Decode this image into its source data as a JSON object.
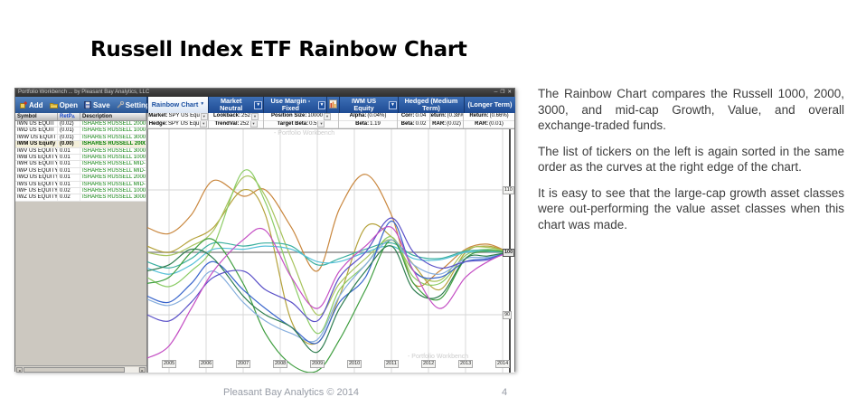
{
  "slide": {
    "title": "Russell Index ETF Rainbow Chart",
    "body_paragraphs": [
      "The Rainbow Chart compares the Russell 1000, 2000, 3000, and mid-cap Growth, Value, and overall exchange-traded funds.",
      "The list of tickers on the left is again sorted in the same order as the curves at the right edge of the chart.",
      "It is easy to see that the large-cap growth asset classes were out-performing the value asset classes when this chart was made."
    ],
    "footer": {
      "credit": "Pleasant Bay Analytics © 2014",
      "page_number": "4"
    }
  },
  "app": {
    "window_title": "Portfolio Workbench ... by Pleasant Bay Analytics, LLC",
    "window_controls": [
      {
        "glyph": "─",
        "icon": "minimize-icon"
      },
      {
        "glyph": "❒",
        "icon": "maximize-icon"
      },
      {
        "glyph": "✕",
        "icon": "close-icon"
      }
    ],
    "toolbar": [
      {
        "label": "Add",
        "icon": "add-icon"
      },
      {
        "label": "Open",
        "icon": "open-folder-icon"
      },
      {
        "label": "Save",
        "icon": "save-disk-icon"
      },
      {
        "label": "Settings",
        "icon": "settings-wrench-icon"
      }
    ],
    "tabs": [
      {
        "label": "Rainbow Chart",
        "active": true,
        "dropdown": true
      },
      {
        "label": "Market Neutral",
        "dropdown": true
      },
      {
        "label": "Use Margin - Fixed",
        "dropdown": true
      },
      {
        "icon": "mini-chart-icon"
      },
      {
        "label": "IWM US Equity",
        "dropdown": true
      },
      {
        "label": "Hedged (Medium Term)"
      },
      {
        "label": "(Longer Term)"
      }
    ],
    "param_groups": [
      {
        "top": "Market: SPY US Equ",
        "bottom": "Hedge: SPY US Equ",
        "dropdown": true
      },
      {
        "top": "Lookback: 252",
        "bottom": "TrendVal: 252",
        "dropdown": true
      },
      {
        "top": "Position Size: 10000",
        "bottom": "Target Beta: 0.5",
        "dropdown": true
      },
      {
        "top": "Alpha: (0.04%)",
        "bottom": "Beta: 1.19"
      },
      {
        "top": "Corr: 0.04",
        "bottom": "Beta: 0.02"
      },
      {
        "top": "Return: (0.38%)",
        "bottom": "RAR: (0.02)"
      },
      {
        "top": "Return: (0.66%)",
        "bottom": "RAR: (0.01)"
      }
    ],
    "table": {
      "headers": [
        "Symbol",
        "RetP",
        "Description"
      ],
      "sort_indicator": "▵",
      "rows": [
        {
          "symbol": "IWN US EQUIT",
          "ret": "(0.02)",
          "desc": "ISHARES RUSSELL 2000 VALUE E",
          "selected": false
        },
        {
          "symbol": "IWD US EQUIT",
          "ret": "(0.01)",
          "desc": "ISHARES RUSSELL 1000 VALUE E",
          "selected": false
        },
        {
          "symbol": "IWW US EQUIT",
          "ret": "(0.01)",
          "desc": "ISHARES RUSSELL 3000 VALUE E",
          "selected": false
        },
        {
          "symbol": "IWM US Equity",
          "ret": "(0.00)",
          "desc": "ISHARES RUSSELL 2000 ETF",
          "selected": true
        },
        {
          "symbol": "IWV US EQUITY",
          "ret": "0.01",
          "desc": "ISHARES RUSSELL 3000 ETF",
          "selected": false
        },
        {
          "symbol": "IWB US EQUITY",
          "ret": "0.01",
          "desc": "ISHARES RUSSELL 1000 ETF",
          "selected": false
        },
        {
          "symbol": "IWR US EQUITY",
          "ret": "0.01",
          "desc": "ISHARES RUSSELL MID-CAP ETF",
          "selected": false
        },
        {
          "symbol": "IWP US EQUITY",
          "ret": "0.01",
          "desc": "ISHARES RUSSELL MID-CAP GRO",
          "selected": false
        },
        {
          "symbol": "IWO US EQUITY",
          "ret": "0.01",
          "desc": "ISHARES RUSSELL 2000 GROWTH",
          "selected": false
        },
        {
          "symbol": "IWS US EQUITY",
          "ret": "0.01",
          "desc": "ISHARES RUSSELL MID-CAP VAL",
          "selected": false
        },
        {
          "symbol": "IWF US EQUITY",
          "ret": "0.02",
          "desc": "ISHARES RUSSELL 1000 GROWTH",
          "selected": false
        },
        {
          "symbol": "IWZ US EQUITY",
          "ret": "0.02",
          "desc": "ISHARES RUSSELL 3000 GROWTH",
          "selected": false
        }
      ]
    }
  },
  "chart_data": {
    "type": "line",
    "x_ticks": [
      2005,
      2006,
      2007,
      2008,
      2009,
      2010,
      2011,
      2012,
      2013,
      2014
    ],
    "y_ticks": [
      110,
      100,
      90
    ],
    "baseline": 100,
    "xlim": [
      2004.4,
      2014.3
    ],
    "ylim": [
      80,
      119
    ],
    "grid": true,
    "watermark": "- Portfolio Workbench",
    "series": [
      {
        "ticker": "IWN",
        "name": "iShares Russell 2000 Value",
        "color": "#c9873e",
        "points": [
          [
            2004.4,
            104
          ],
          [
            2005,
            103
          ],
          [
            2005.6,
            106
          ],
          [
            2006.2,
            111.5
          ],
          [
            2007,
            109
          ],
          [
            2007.6,
            110
          ],
          [
            2008.3,
            104
          ],
          [
            2009,
            97
          ],
          [
            2009.6,
            107
          ],
          [
            2010.3,
            112.5
          ],
          [
            2011,
            106
          ],
          [
            2011.6,
            95
          ],
          [
            2012.3,
            97
          ],
          [
            2013,
            100.5
          ],
          [
            2013.6,
            101.3
          ],
          [
            2014.15,
            100
          ]
        ]
      },
      {
        "ticker": "IWD",
        "name": "iShares Russell 1000 Value",
        "color": "#b5a23b",
        "points": [
          [
            2004.4,
            101
          ],
          [
            2005,
            100
          ],
          [
            2005.6,
            102
          ],
          [
            2006.2,
            104
          ],
          [
            2007,
            110
          ],
          [
            2007.6,
            106
          ],
          [
            2008.3,
            89
          ],
          [
            2009,
            85.5
          ],
          [
            2009.6,
            93
          ],
          [
            2010.3,
            104
          ],
          [
            2011,
            102.5
          ],
          [
            2011.6,
            98
          ],
          [
            2012.3,
            94
          ],
          [
            2013,
            100
          ],
          [
            2013.6,
            101
          ],
          [
            2014.15,
            100
          ]
        ]
      },
      {
        "ticker": "IWW",
        "name": "iShares Russell 3000 Value",
        "color": "#a8c45e",
        "points": [
          [
            2004.4,
            100
          ],
          [
            2005,
            99.5
          ],
          [
            2005.6,
            101
          ],
          [
            2006.2,
            103.5
          ],
          [
            2007,
            112
          ],
          [
            2007.6,
            109
          ],
          [
            2008.3,
            99
          ],
          [
            2009,
            90
          ],
          [
            2009.6,
            95
          ],
          [
            2010.3,
            99
          ],
          [
            2011,
            102
          ],
          [
            2011.6,
            97
          ],
          [
            2012.3,
            95.5
          ],
          [
            2013,
            100.3
          ],
          [
            2013.6,
            100.8
          ],
          [
            2014.15,
            100
          ]
        ]
      },
      {
        "ticker": "IWM",
        "name": "iShares Russell 2000 ETF",
        "color": "#8ccc66",
        "points": [
          [
            2004.4,
            96
          ],
          [
            2005,
            94.5
          ],
          [
            2005.6,
            97
          ],
          [
            2006.2,
            101
          ],
          [
            2007,
            113
          ],
          [
            2007.6,
            108
          ],
          [
            2008.3,
            96
          ],
          [
            2009,
            87
          ],
          [
            2009.6,
            94
          ],
          [
            2010.3,
            98
          ],
          [
            2011,
            102.5
          ],
          [
            2011.6,
            96
          ],
          [
            2012.3,
            95
          ],
          [
            2013,
            99.5
          ],
          [
            2013.6,
            100.5
          ],
          [
            2014.15,
            100
          ]
        ]
      },
      {
        "ticker": "IWV",
        "name": "iShares Russell 3000 ETF",
        "color": "#3aaf9f",
        "points": [
          [
            2004.4,
            98.5
          ],
          [
            2005,
            97.5
          ],
          [
            2005.6,
            99
          ],
          [
            2006.2,
            101.5
          ],
          [
            2007,
            101
          ],
          [
            2007.6,
            101.5
          ],
          [
            2008.3,
            101
          ],
          [
            2009,
            98
          ],
          [
            2009.6,
            99
          ],
          [
            2010.3,
            100.5
          ],
          [
            2011,
            101.5
          ],
          [
            2011.6,
            99.5
          ],
          [
            2012.3,
            99
          ],
          [
            2013,
            100.2
          ],
          [
            2013.6,
            100.3
          ],
          [
            2014.15,
            100
          ]
        ]
      },
      {
        "ticker": "IWB",
        "name": "iShares Russell 1000 ETF",
        "color": "#55c0d8",
        "points": [
          [
            2004.4,
            97.5
          ],
          [
            2005,
            96.5
          ],
          [
            2005.6,
            98
          ],
          [
            2006.2,
            100.5
          ],
          [
            2007,
            100.5
          ],
          [
            2007.6,
            101
          ],
          [
            2008.3,
            100.5
          ],
          [
            2009,
            98.5
          ],
          [
            2009.6,
            98.5
          ],
          [
            2010.3,
            100
          ],
          [
            2011,
            101
          ],
          [
            2011.6,
            99
          ],
          [
            2012.3,
            98.8
          ],
          [
            2013,
            100
          ],
          [
            2013.6,
            100.1
          ],
          [
            2014.15,
            100
          ]
        ]
      },
      {
        "ticker": "IWR",
        "name": "iShares Russell Mid-Cap ETF",
        "color": "#3f9e3f",
        "points": [
          [
            2004.4,
            95
          ],
          [
            2005,
            96
          ],
          [
            2005.6,
            100
          ],
          [
            2006.2,
            102
          ],
          [
            2007,
            95
          ],
          [
            2007.6,
            87
          ],
          [
            2008.3,
            82
          ],
          [
            2009,
            81
          ],
          [
            2009.6,
            86
          ],
          [
            2010.3,
            94
          ],
          [
            2011,
            102
          ],
          [
            2011.6,
            95
          ],
          [
            2012.3,
            92.5
          ],
          [
            2013,
            99
          ],
          [
            2013.6,
            100.2
          ],
          [
            2014.15,
            100
          ]
        ]
      },
      {
        "ticker": "IWP",
        "name": "iShares Russell Mid-Cap Growth",
        "color": "#86aede",
        "points": [
          [
            2004.4,
            92.5
          ],
          [
            2005,
            91.5
          ],
          [
            2005.6,
            93.5
          ],
          [
            2006.2,
            97
          ],
          [
            2007,
            92
          ],
          [
            2007.6,
            89
          ],
          [
            2008.3,
            87
          ],
          [
            2009,
            86
          ],
          [
            2009.6,
            93
          ],
          [
            2010.3,
            98
          ],
          [
            2011,
            102
          ],
          [
            2011.6,
            98
          ],
          [
            2012.3,
            96.5
          ],
          [
            2013,
            99
          ],
          [
            2013.6,
            99.2
          ],
          [
            2014.15,
            100
          ]
        ]
      },
      {
        "ticker": "IWO",
        "name": "iShares Russell 2000 Growth",
        "color": "#3a66cc",
        "points": [
          [
            2004.4,
            93
          ],
          [
            2005,
            92
          ],
          [
            2005.6,
            95
          ],
          [
            2006.2,
            98.5
          ],
          [
            2007,
            94
          ],
          [
            2007.6,
            91
          ],
          [
            2008.3,
            88
          ],
          [
            2009,
            85.5
          ],
          [
            2009.6,
            92
          ],
          [
            2010.3,
            96
          ],
          [
            2011,
            105
          ],
          [
            2011.6,
            97
          ],
          [
            2012.3,
            96
          ],
          [
            2013,
            98.5
          ],
          [
            2013.6,
            99
          ],
          [
            2014.15,
            100
          ]
        ]
      },
      {
        "ticker": "IWS",
        "name": "iShares Russell Mid-Cap Value",
        "color": "#2e7d4f",
        "points": [
          [
            2004.4,
            97
          ],
          [
            2005,
            98
          ],
          [
            2005.6,
            100.5
          ],
          [
            2006.2,
            99
          ],
          [
            2007,
            93
          ],
          [
            2007.6,
            90
          ],
          [
            2008.3,
            88
          ],
          [
            2009,
            84
          ],
          [
            2009.6,
            91
          ],
          [
            2010.3,
            97
          ],
          [
            2011,
            101
          ],
          [
            2011.6,
            94
          ],
          [
            2012.3,
            93
          ],
          [
            2013,
            99
          ],
          [
            2013.6,
            99.4
          ],
          [
            2014.15,
            100
          ]
        ]
      },
      {
        "ticker": "IWF",
        "name": "iShares Russell 1000 Growth",
        "color": "#5a50c8",
        "points": [
          [
            2004.4,
            90
          ],
          [
            2005,
            89
          ],
          [
            2005.6,
            92
          ],
          [
            2006.2,
            96
          ],
          [
            2007,
            97
          ],
          [
            2007.6,
            94
          ],
          [
            2008.3,
            92
          ],
          [
            2009,
            89
          ],
          [
            2009.6,
            96
          ],
          [
            2010.3,
            100
          ],
          [
            2011,
            105.5
          ],
          [
            2011.6,
            100
          ],
          [
            2012.3,
            97.5
          ],
          [
            2013,
            98.5
          ],
          [
            2013.6,
            98.8
          ],
          [
            2014.15,
            100
          ]
        ]
      },
      {
        "ticker": "IWZ",
        "name": "iShares Russell 3000 Growth",
        "color": "#c44fc4",
        "points": [
          [
            2004.4,
            83
          ],
          [
            2005,
            85
          ],
          [
            2005.6,
            91
          ],
          [
            2006.2,
            97
          ],
          [
            2007,
            102
          ],
          [
            2007.6,
            103.5
          ],
          [
            2008.3,
            96
          ],
          [
            2009,
            91
          ],
          [
            2009.6,
            97
          ],
          [
            2010.3,
            101
          ],
          [
            2011,
            104
          ],
          [
            2011.6,
            97
          ],
          [
            2012.3,
            91
          ],
          [
            2013,
            96
          ],
          [
            2013.6,
            98.5
          ],
          [
            2014.15,
            100
          ]
        ]
      }
    ]
  }
}
